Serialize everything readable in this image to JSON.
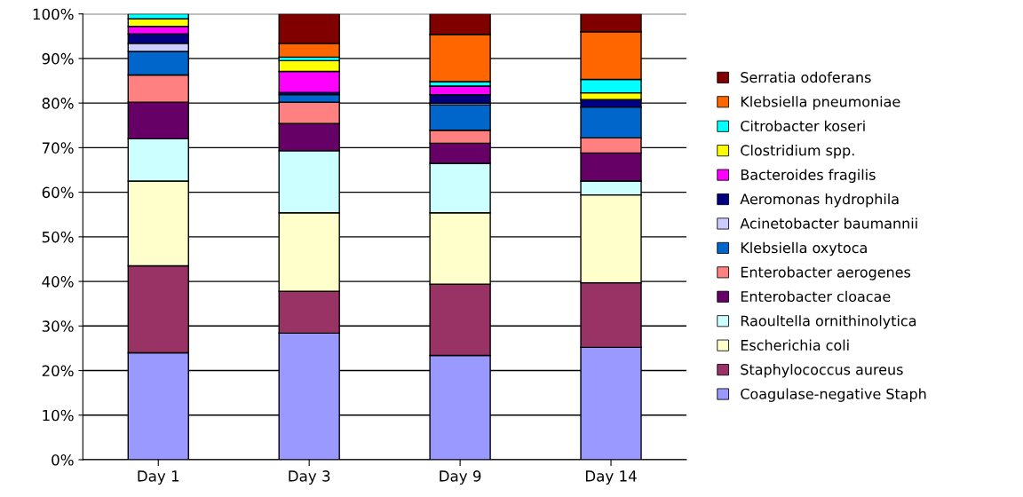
{
  "chart_data": {
    "type": "bar",
    "stacked": true,
    "categories": [
      "Day 1",
      "Day 3",
      "Day 9",
      "Day 14"
    ],
    "series": [
      {
        "name": "Coagulase-negative Staph",
        "color": "#9999ff",
        "values": [
          24,
          28.4,
          23.4,
          25.2
        ]
      },
      {
        "name": "Staphylococcus aureus",
        "color": "#993366",
        "values": [
          19.5,
          9.4,
          16,
          14.5
        ]
      },
      {
        "name": "Escherichia coli",
        "color": "#ffffcc",
        "values": [
          19,
          17.6,
          16,
          19.7
        ]
      },
      {
        "name": "Raoultella ornithinolytica",
        "color": "#ccffff",
        "values": [
          9.5,
          13.9,
          11.1,
          3.1
        ]
      },
      {
        "name": "Enterobacter cloacae",
        "color": "#660066",
        "values": [
          8.2,
          6.1,
          4.5,
          6.3
        ]
      },
      {
        "name": "Enterobacter aerogenes",
        "color": "#ff8080",
        "values": [
          6.1,
          4.8,
          2.9,
          3.4
        ]
      },
      {
        "name": "Klebsiella oxytoca",
        "color": "#0066cc",
        "values": [
          5.3,
          1.7,
          5.7,
          6.9
        ]
      },
      {
        "name": "Acinetobacter baumannii",
        "color": "#ccccff",
        "values": [
          1.8,
          0,
          0.4,
          0
        ]
      },
      {
        "name": "Aeromonas hydrophila",
        "color": "#000080",
        "values": [
          2.1,
          0.5,
          1.9,
          1.7
        ]
      },
      {
        "name": "Bacteroides fragilis",
        "color": "#ff00ff",
        "values": [
          1.7,
          4.7,
          1.9,
          0
        ]
      },
      {
        "name": "Clostridium spp.",
        "color": "#ffff00",
        "values": [
          1.7,
          2.4,
          0,
          1.5
        ]
      },
      {
        "name": "Citrobacter koseri",
        "color": "#00ffff",
        "values": [
          1.1,
          0.8,
          1.0,
          3.0
        ]
      },
      {
        "name": "Klebsiella pneumoniae",
        "color": "#ff6600",
        "values": [
          0,
          3.1,
          10.6,
          10.7
        ]
      },
      {
        "name": "Serratia odoferans",
        "color": "#800000",
        "values": [
          0,
          6.6,
          4.6,
          4.0
        ]
      }
    ],
    "ylim": [
      0,
      100
    ],
    "yticks": [
      {
        "value": 0,
        "label": "0%"
      },
      {
        "value": 10,
        "label": "10%"
      },
      {
        "value": 20,
        "label": "20%"
      },
      {
        "value": 30,
        "label": "30%"
      },
      {
        "value": 40,
        "label": "40%"
      },
      {
        "value": 50,
        "label": "50%"
      },
      {
        "value": 60,
        "label": "60%"
      },
      {
        "value": 70,
        "label": "70%"
      },
      {
        "value": 80,
        "label": "80%"
      },
      {
        "value": 90,
        "label": "90%"
      },
      {
        "value": 100,
        "label": "100%"
      }
    ],
    "grid": "y",
    "legend": "right"
  }
}
